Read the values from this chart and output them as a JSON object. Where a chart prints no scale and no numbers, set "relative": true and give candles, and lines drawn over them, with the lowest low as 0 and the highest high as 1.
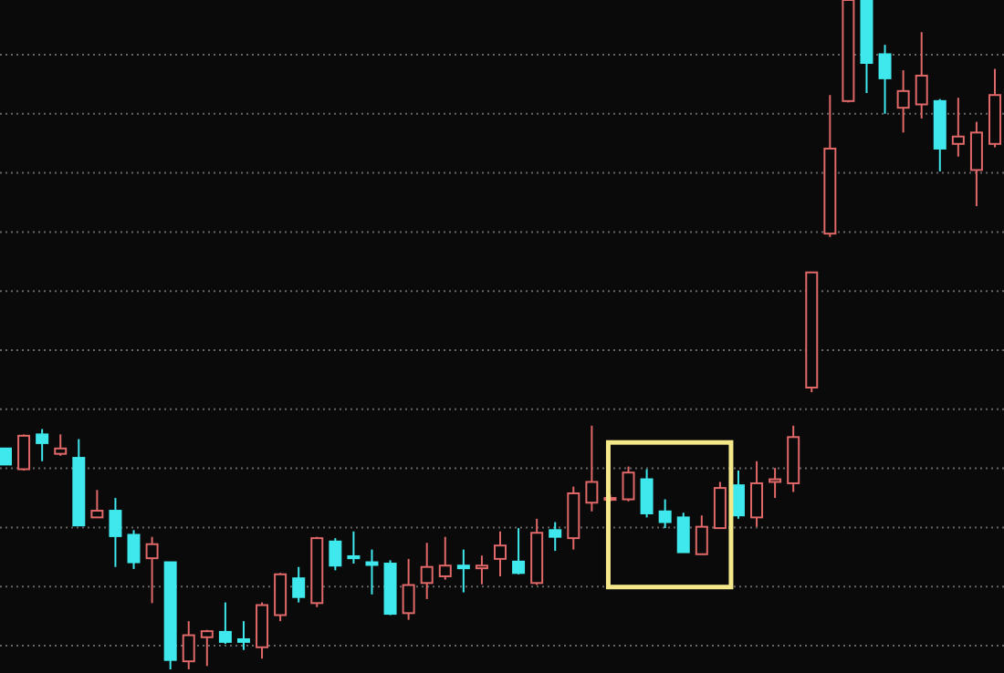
{
  "chart_data": {
    "type": "candlestick",
    "relative": true,
    "grid": true,
    "categories": [
      null,
      null,
      null,
      null,
      null,
      null,
      null,
      null,
      null,
      null,
      null,
      null,
      null,
      null,
      null,
      null,
      null,
      null,
      null,
      null,
      null,
      null,
      null,
      null,
      null,
      null,
      null,
      null,
      null,
      null,
      null,
      null,
      null,
      null,
      null,
      null,
      null,
      null,
      null,
      null,
      null,
      null,
      null,
      null,
      null,
      null,
      null,
      null,
      null,
      null,
      null,
      null,
      null,
      null,
      null
    ],
    "ohlc": [
      [
        0.33,
        0.33,
        0.306,
        0.306
      ],
      [
        0.299,
        0.351,
        0.297,
        0.349
      ],
      [
        0.351,
        0.359,
        0.311,
        0.338
      ],
      [
        0.322,
        0.351,
        0.319,
        0.33
      ],
      [
        0.316,
        0.344,
        0.215,
        0.215
      ],
      [
        0.227,
        0.268,
        0.227,
        0.237
      ],
      [
        0.237,
        0.256,
        0.153,
        0.199
      ],
      [
        0.201,
        0.208,
        0.15,
        0.16
      ],
      [
        0.166,
        0.198,
        0.099,
        0.187
      ],
      [
        0.16,
        0.16,
        0,
        0.014
      ],
      [
        0.012,
        0.072,
        0,
        0.051
      ],
      [
        0.048,
        0.059,
        0.005,
        0.057
      ],
      [
        0.056,
        0.1,
        0.038,
        0.041
      ],
      [
        0.045,
        0.072,
        0.029,
        0.041
      ],
      [
        0.033,
        0.1,
        0.016,
        0.096
      ],
      [
        0.081,
        0.144,
        0.072,
        0.142
      ],
      [
        0.136,
        0.153,
        0.1,
        0.108
      ],
      [
        0.099,
        0.198,
        0.093,
        0.196
      ],
      [
        0.191,
        0.196,
        0.148,
        0.155
      ],
      [
        0.169,
        0.206,
        0.158,
        0.166
      ],
      [
        0.16,
        0.179,
        0.112,
        0.156
      ],
      [
        0.158,
        0.163,
        0.081,
        0.083
      ],
      [
        0.084,
        0.165,
        0.074,
        0.126
      ],
      [
        0.129,
        0.189,
        0.105,
        0.153
      ],
      [
        0.139,
        0.198,
        0.134,
        0.155
      ],
      [
        0.155,
        0.179,
        0.115,
        0.151
      ],
      [
        0.151,
        0.17,
        0.127,
        0.155
      ],
      [
        0.165,
        0.206,
        0.139,
        0.185
      ],
      [
        0.161,
        0.211,
        0.142,
        0.144
      ],
      [
        0.129,
        0.225,
        0.126,
        0.204
      ],
      [
        0.208,
        0.22,
        0.177,
        0.198
      ],
      [
        0.196,
        0.273,
        0.179,
        0.263
      ],
      [
        0.249,
        0.364,
        0.236,
        0.28
      ],
      [
        0.255,
        0.261,
        0.251,
        0.256
      ],
      [
        0.254,
        0.303,
        0.251,
        0.294
      ],
      [
        0.284,
        0.299,
        0.227,
        0.233
      ],
      [
        0.236,
        0.254,
        0.211,
        0.22
      ],
      [
        0.227,
        0.234,
        0.175,
        0.175
      ],
      [
        0.172,
        0.23,
        0.172,
        0.213
      ],
      [
        0.211,
        0.28,
        0.211,
        0.271
      ],
      [
        0.275,
        0.297,
        0.225,
        0.23
      ],
      [
        0.227,
        0.311,
        0.213,
        0.278
      ],
      [
        0.28,
        0.301,
        0.256,
        0.284
      ],
      [
        0.278,
        0.364,
        0.265,
        0.347
      ],
      [
        0.421,
        0.593,
        0.414,
        0.593
      ],
      [
        0.651,
        0.858,
        0.646,
        0.778
      ],
      [
        0.849,
        1,
        0.847,
        1
      ],
      [
        1,
        1,
        0.861,
        0.906
      ],
      [
        0.919,
        0.933,
        0.83,
        0.883
      ],
      [
        0.839,
        0.895,
        0.802,
        0.864
      ],
      [
        0.844,
        0.952,
        0.823,
        0.887
      ],
      [
        0.849,
        0.852,
        0.744,
        0.778
      ],
      [
        0.785,
        0.854,
        0.766,
        0.796
      ],
      [
        0.746,
        0.818,
        0.692,
        0.802
      ],
      [
        0.785,
        0.897,
        0.78,
        0.858
      ]
    ]
  }
}
